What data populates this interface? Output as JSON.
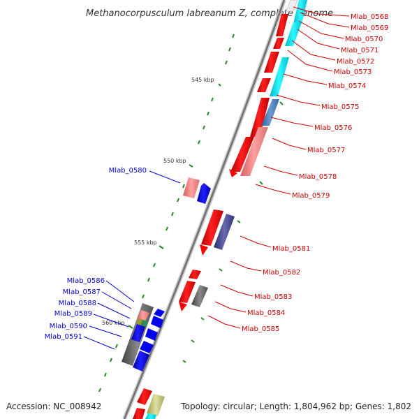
{
  "title": "Methanocorpusculum labreanum Z, complete genome",
  "footer": {
    "accession": "Accession: NC_008942",
    "summary": "Topology: circular; Length: 1,804,962 bp; Genes: 1,802"
  },
  "ticks": [
    "545 kbp",
    "550 kbp",
    "555 kbp",
    "560 kbp"
  ],
  "genes_red": [
    "Mlab_0568",
    "Mlab_0569",
    "Mlab_0570",
    "Mlab_0571",
    "Mlab_0572",
    "Mlab_0573",
    "Mlab_0574",
    "Mlab_0575",
    "Mlab_0576",
    "Mlab_0577",
    "Mlab_0578",
    "Mlab_0579",
    "Mlab_0581",
    "Mlab_0582",
    "Mlab_0583",
    "Mlab_0584",
    "Mlab_0585"
  ],
  "genes_blue": [
    "Mlab_0580",
    "Mlab_0586",
    "Mlab_0587",
    "Mlab_0588",
    "Mlab_0589",
    "Mlab_0590",
    "Mlab_0591"
  ],
  "colors": {
    "cds_forward": "#ff0000",
    "cds_reverse": "#0000ff",
    "backbone": "#888888",
    "tick": "#006600",
    "label_red": "#cc0000",
    "label_blue": "#0000cc"
  }
}
